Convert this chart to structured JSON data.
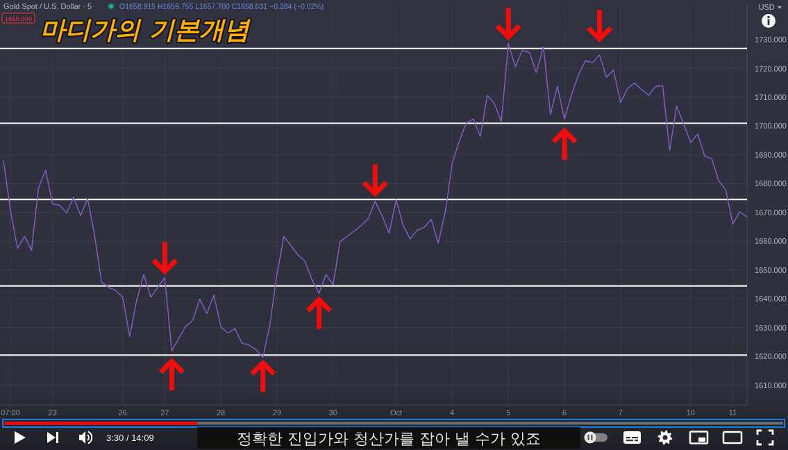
{
  "chart_data": {
    "type": "line",
    "title": "마디가의 기본개념",
    "subtitle": "Gold Spot / U.S. Dollar · 5",
    "ylabel": "USD",
    "annotations": [
      "1658.590",
      "O1658.915 H1659.755 L1657.700 C1658.631 −0.284 (−0.02%)",
      "정확한 진입가와 청산가를 잡아 낼 수가 있죠",
      "3:30 / 14:09"
    ],
    "categories": [
      null,
      "07:00",
      null,
      null,
      null,
      null,
      null,
      "23",
      null,
      null,
      null,
      null,
      null,
      null,
      null,
      null,
      null,
      "26",
      null,
      null,
      null,
      null,
      null,
      "27",
      null,
      null,
      null,
      null,
      null,
      null,
      null,
      "28",
      null,
      null,
      null,
      null,
      null,
      null,
      null,
      "29",
      null,
      null,
      null,
      null,
      null,
      null,
      null,
      "30",
      null,
      null,
      null,
      null,
      null,
      null,
      null,
      null,
      "Oct",
      null,
      null,
      null,
      null,
      null,
      null,
      null,
      "4",
      null,
      null,
      null,
      null,
      null,
      null,
      null,
      "5",
      null,
      null,
      null,
      null,
      null,
      null,
      null,
      "6",
      null,
      null,
      null,
      null,
      null,
      null,
      null,
      "7",
      null,
      null,
      null,
      null,
      null,
      null,
      null,
      null,
      null,
      "10",
      null,
      null,
      null,
      null,
      null,
      "11",
      null,
      null
    ],
    "values": [
      1688.0,
      1670.7,
      1657.6,
      1661.7,
      1656.9,
      1678.5,
      1684.8,
      1673.0,
      1672.6,
      1669.8,
      1675.3,
      1668.9,
      1674.8,
      1662.1,
      1645.8,
      1644.0,
      1642.9,
      1640.6,
      1627.0,
      1639.5,
      1648.5,
      1640.6,
      1644.0,
      1647.4,
      1622.0,
      1626.3,
      1630.4,
      1632.6,
      1639.9,
      1634.9,
      1641.3,
      1630.4,
      1628.1,
      1629.7,
      1624.7,
      1624.0,
      1622.4,
      1619.7,
      1631.1,
      1648.5,
      1661.7,
      1658.5,
      1655.3,
      1653.1,
      1646.7,
      1641.9,
      1648.5,
      1644.9,
      1659.9,
      1661.7,
      1663.5,
      1665.5,
      1667.8,
      1673.9,
      1668.9,
      1662.8,
      1674.4,
      1665.5,
      1660.8,
      1663.9,
      1664.8,
      1667.6,
      1659.4,
      1670.1,
      1687.1,
      1694.8,
      1701.1,
      1702.5,
      1696.4,
      1710.7,
      1707.9,
      1701.6,
      1728.8,
      1720.6,
      1726.3,
      1725.6,
      1718.6,
      1727.7,
      1704.1,
      1713.8,
      1702.5,
      1710.9,
      1717.9,
      1722.7,
      1722.0,
      1724.7,
      1717.0,
      1719.5,
      1708.2,
      1713.1,
      1715.0,
      1712.7,
      1710.7,
      1713.8,
      1714.1,
      1691.6,
      1707.0,
      1700.7,
      1694.3,
      1697.3,
      1689.6,
      1688.7,
      1681.0,
      1678.0,
      1666.0,
      1670.3,
      1668.5
    ],
    "color": "#8a5ccc",
    "ylim": [
      1603.2,
      1742.6
    ],
    "yticks": [
      {
        "value": 1610,
        "label": "1610.000"
      },
      {
        "value": 1620,
        "label": "1620.000"
      },
      {
        "value": 1630,
        "label": "1630.000"
      },
      {
        "value": 1640,
        "label": "1640.000"
      },
      {
        "value": 1650,
        "label": "1650.000"
      },
      {
        "value": 1660,
        "label": "1660.000"
      },
      {
        "value": 1670,
        "label": "1670.000"
      },
      {
        "value": 1680,
        "label": "1680.000"
      },
      {
        "value": 1690,
        "label": "1690.000"
      },
      {
        "value": 1700,
        "label": "1700.000"
      },
      {
        "value": 1710,
        "label": "1710.000"
      },
      {
        "value": 1720,
        "label": "1720.000"
      },
      {
        "value": 1730,
        "label": "1730.000"
      }
    ],
    "ref_lines": [
      {
        "axis": "y",
        "value": 1727,
        "color": "#ffffff"
      },
      {
        "axis": "y",
        "value": 1701,
        "color": "#ffffff"
      },
      {
        "axis": "y",
        "value": 1674.5,
        "color": "#ffffff"
      },
      {
        "axis": "y",
        "value": 1644.5,
        "color": "#ffffff"
      },
      {
        "axis": "y",
        "value": 1620.5,
        "color": "#ffffff"
      }
    ],
    "grid": true
  }
}
